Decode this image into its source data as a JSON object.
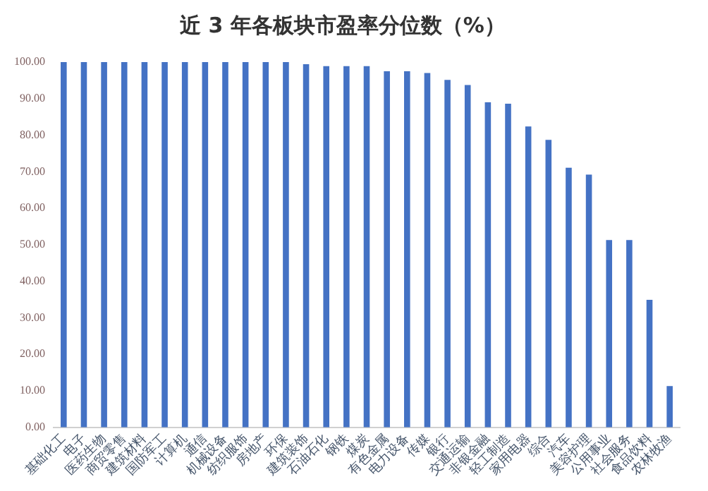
{
  "chart_data": {
    "type": "bar",
    "title": "近 3 年各板块市盈率分位数（%）",
    "categories": [
      "基础化工",
      "电子",
      "医药生物",
      "商贸零售",
      "建筑材料",
      "国防军工",
      "计算机",
      "通信",
      "机械设备",
      "纺织服饰",
      "房地产",
      "环保",
      "建筑装饰",
      "石油石化",
      "钢铁",
      "煤炭",
      "有色金属",
      "电力设备",
      "传媒",
      "银行",
      "交通运输",
      "非银金融",
      "轻工制造",
      "家用电器",
      "综合",
      "汽车",
      "美容护理",
      "公用事业",
      "社会服务",
      "食品饮料",
      "农林牧渔"
    ],
    "values": [
      100,
      100,
      100,
      100,
      100,
      100,
      100,
      100,
      100,
      100,
      100,
      100,
      99.4,
      98.9,
      98.9,
      98.9,
      97.5,
      97.5,
      97.0,
      95.1,
      93.7,
      89.0,
      88.6,
      82.4,
      78.7,
      71.1,
      69.2,
      51.3,
      51.3,
      34.9,
      11.3
    ],
    "color": "#4472c4",
    "ylim": [
      0,
      100
    ],
    "yticks": [
      {
        "value": 0,
        "label": "0.00"
      },
      {
        "value": 10,
        "label": "10.00"
      },
      {
        "value": 20,
        "label": "20.00"
      },
      {
        "value": 30,
        "label": "30.00"
      },
      {
        "value": 40,
        "label": "40.00"
      },
      {
        "value": 50,
        "label": "50.00"
      },
      {
        "value": 60,
        "label": "60.00"
      },
      {
        "value": 70,
        "label": "70.00"
      },
      {
        "value": 80,
        "label": "80.00"
      },
      {
        "value": 90,
        "label": "90.00"
      },
      {
        "value": 100,
        "label": "100.00"
      }
    ],
    "grid": false
  }
}
